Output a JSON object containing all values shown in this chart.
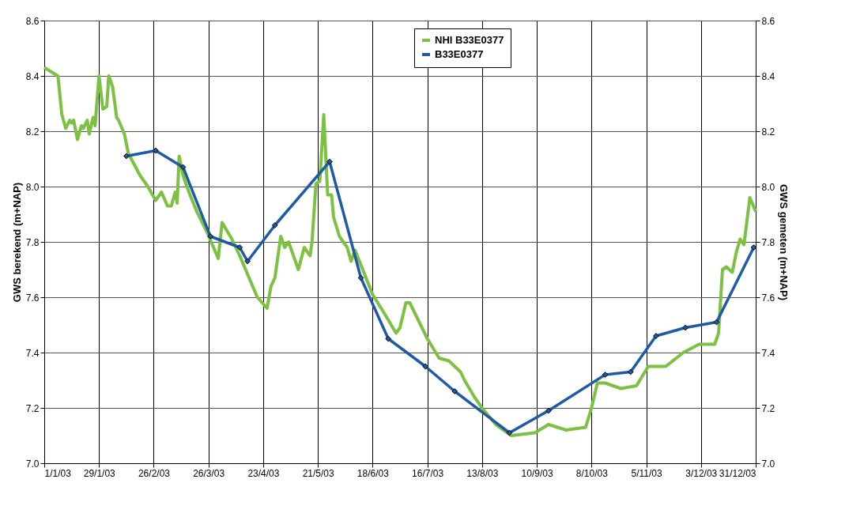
{
  "chart_data": {
    "type": "line",
    "xlim": [
      "2003-01-01",
      "2003-12-31"
    ],
    "xticks": [
      {
        "value": "2003-01-01",
        "label": "1/1/03"
      },
      {
        "value": "2003-01-29",
        "label": "29/1/03"
      },
      {
        "value": "2003-02-26",
        "label": "26/2/03"
      },
      {
        "value": "2003-03-26",
        "label": "26/3/03"
      },
      {
        "value": "2003-04-23",
        "label": "23/4/03"
      },
      {
        "value": "2003-05-21",
        "label": "21/5/03"
      },
      {
        "value": "2003-06-18",
        "label": "18/6/03"
      },
      {
        "value": "2003-07-16",
        "label": "16/7/03"
      },
      {
        "value": "2003-08-13",
        "label": "13/8/03"
      },
      {
        "value": "2003-09-10",
        "label": "10/9/03"
      },
      {
        "value": "2003-10-08",
        "label": "8/10/03"
      },
      {
        "value": "2003-11-05",
        "label": "5/11/03"
      },
      {
        "value": "2003-12-03",
        "label": "3/12/03"
      },
      {
        "value": "2003-12-31",
        "label": "31/12/03"
      }
    ],
    "ylabel": "GWS berekend (m+NAP)",
    "y2label": "GWS gemeten (m+NAP)",
    "ylim": [
      7.0,
      8.6
    ],
    "yticks": [
      {
        "value": 7,
        "label": "7.0"
      },
      {
        "value": 7.2,
        "label": "7.2"
      },
      {
        "value": 7.4,
        "label": "7.4"
      },
      {
        "value": 7.6,
        "label": "7.6"
      },
      {
        "value": 7.8,
        "label": "7.8"
      },
      {
        "value": 8,
        "label": "8.0"
      },
      {
        "value": 8.2,
        "label": "8.2"
      },
      {
        "value": 8.4,
        "label": "8.4"
      },
      {
        "value": 8.6,
        "label": "8.6"
      }
    ],
    "y2lim": [
      7.0,
      8.6
    ],
    "y2ticks": [
      {
        "value": 7,
        "label": "7.0"
      },
      {
        "value": 7.2,
        "label": "7.2"
      },
      {
        "value": 7.4,
        "label": "7.4"
      },
      {
        "value": 7.6,
        "label": "7.6"
      },
      {
        "value": 7.8,
        "label": "7.8"
      },
      {
        "value": 8,
        "label": "8.0"
      },
      {
        "value": 8.2,
        "label": "8.2"
      },
      {
        "value": 8.4,
        "label": "8.4"
      },
      {
        "value": 8.6,
        "label": "8.6"
      }
    ],
    "grid": true,
    "legend": "top",
    "line_style": "solid",
    "series": [
      {
        "name": "NHI B33E0377",
        "color": "#7dc142",
        "marker": "none",
        "x": [
          "2003-01-01",
          "2003-01-08",
          "2003-01-10",
          "2003-01-12",
          "2003-01-14",
          "2003-01-15",
          "2003-01-16",
          "2003-01-18",
          "2003-01-20",
          "2003-01-21",
          "2003-01-23",
          "2003-01-24",
          "2003-01-26",
          "2003-01-27",
          "2003-01-29",
          "2003-01-31",
          "2003-02-02",
          "2003-02-03",
          "2003-02-05",
          "2003-02-07",
          "2003-02-08",
          "2003-02-11",
          "2003-02-13",
          "2003-02-19",
          "2003-02-23",
          "2003-02-27",
          "2003-03-02",
          "2003-03-05",
          "2003-03-07",
          "2003-03-09",
          "2003-03-10",
          "2003-03-11",
          "2003-03-13",
          "2003-03-16",
          "2003-03-20",
          "2003-03-25",
          "2003-03-31",
          "2003-04-02",
          "2003-04-07",
          "2003-04-11",
          "2003-04-20",
          "2003-04-25",
          "2003-04-27",
          "2003-04-29",
          "2003-05-02",
          "2003-05-04",
          "2003-05-06",
          "2003-05-11",
          "2003-05-14",
          "2003-05-17",
          "2003-05-18",
          "2003-05-20",
          "2003-05-22",
          "2003-05-24",
          "2003-05-26",
          "2003-05-28",
          "2003-05-29",
          "2003-06-01",
          "2003-06-05",
          "2003-06-07",
          "2003-06-09",
          "2003-06-18",
          "2003-06-25",
          "2003-06-30",
          "2003-07-02",
          "2003-07-05",
          "2003-07-07",
          "2003-07-16",
          "2003-07-22",
          "2003-07-27",
          "2003-08-02",
          "2003-08-04",
          "2003-08-09",
          "2003-08-13",
          "2003-08-20",
          "2003-08-28",
          "2003-09-09",
          "2003-09-16",
          "2003-09-25",
          "2003-10-05",
          "2003-10-08",
          "2003-10-11",
          "2003-10-15",
          "2003-10-23",
          "2003-10-31",
          "2003-11-06",
          "2003-11-15",
          "2003-11-24",
          "2003-12-02",
          "2003-12-10",
          "2003-12-12",
          "2003-12-14",
          "2003-12-16",
          "2003-12-19",
          "2003-12-21",
          "2003-12-23",
          "2003-12-25",
          "2003-12-28",
          "2003-12-31"
        ],
        "values": [
          8.43,
          8.4,
          8.26,
          8.21,
          8.24,
          8.23,
          8.24,
          8.17,
          8.22,
          8.21,
          8.24,
          8.19,
          8.25,
          8.22,
          8.4,
          8.28,
          8.29,
          8.4,
          8.36,
          8.25,
          8.24,
          8.19,
          8.12,
          8.04,
          8.0,
          7.95,
          7.98,
          7.93,
          7.93,
          7.98,
          7.94,
          8.11,
          8.04,
          7.98,
          7.91,
          7.84,
          7.74,
          7.87,
          7.81,
          7.75,
          7.6,
          7.56,
          7.64,
          7.67,
          7.82,
          7.78,
          7.8,
          7.7,
          7.78,
          7.75,
          7.8,
          8.01,
          8.02,
          8.26,
          7.97,
          7.97,
          7.89,
          7.82,
          7.78,
          7.73,
          7.77,
          7.61,
          7.53,
          7.47,
          7.49,
          7.58,
          7.58,
          7.45,
          7.38,
          7.37,
          7.33,
          7.3,
          7.24,
          7.2,
          7.14,
          7.1,
          7.11,
          7.14,
          7.12,
          7.13,
          7.2,
          7.29,
          7.29,
          7.27,
          7.28,
          7.35,
          7.35,
          7.4,
          7.43,
          7.43,
          7.47,
          7.7,
          7.71,
          7.69,
          7.76,
          7.81,
          7.79,
          7.96,
          7.91
        ]
      },
      {
        "name": "B33E0377",
        "color": "#1f5aa6",
        "marker": "diamond",
        "axis": "y2",
        "x": [
          "2003-02-12",
          "2003-02-27",
          "2003-03-13",
          "2003-03-27",
          "2003-04-11",
          "2003-04-15",
          "2003-04-29",
          "2003-05-27",
          "2003-06-12",
          "2003-06-26",
          "2003-07-15",
          "2003-07-30",
          "2003-08-27",
          "2003-09-16",
          "2003-10-15",
          "2003-10-28",
          "2003-11-10",
          "2003-11-25",
          "2003-12-11",
          "2003-12-30"
        ],
        "values": [
          8.11,
          8.13,
          8.07,
          7.82,
          7.78,
          7.73,
          7.86,
          8.09,
          7.67,
          7.45,
          7.35,
          7.26,
          7.11,
          7.19,
          7.32,
          7.33,
          7.46,
          7.49,
          7.51,
          7.78
        ]
      }
    ]
  }
}
